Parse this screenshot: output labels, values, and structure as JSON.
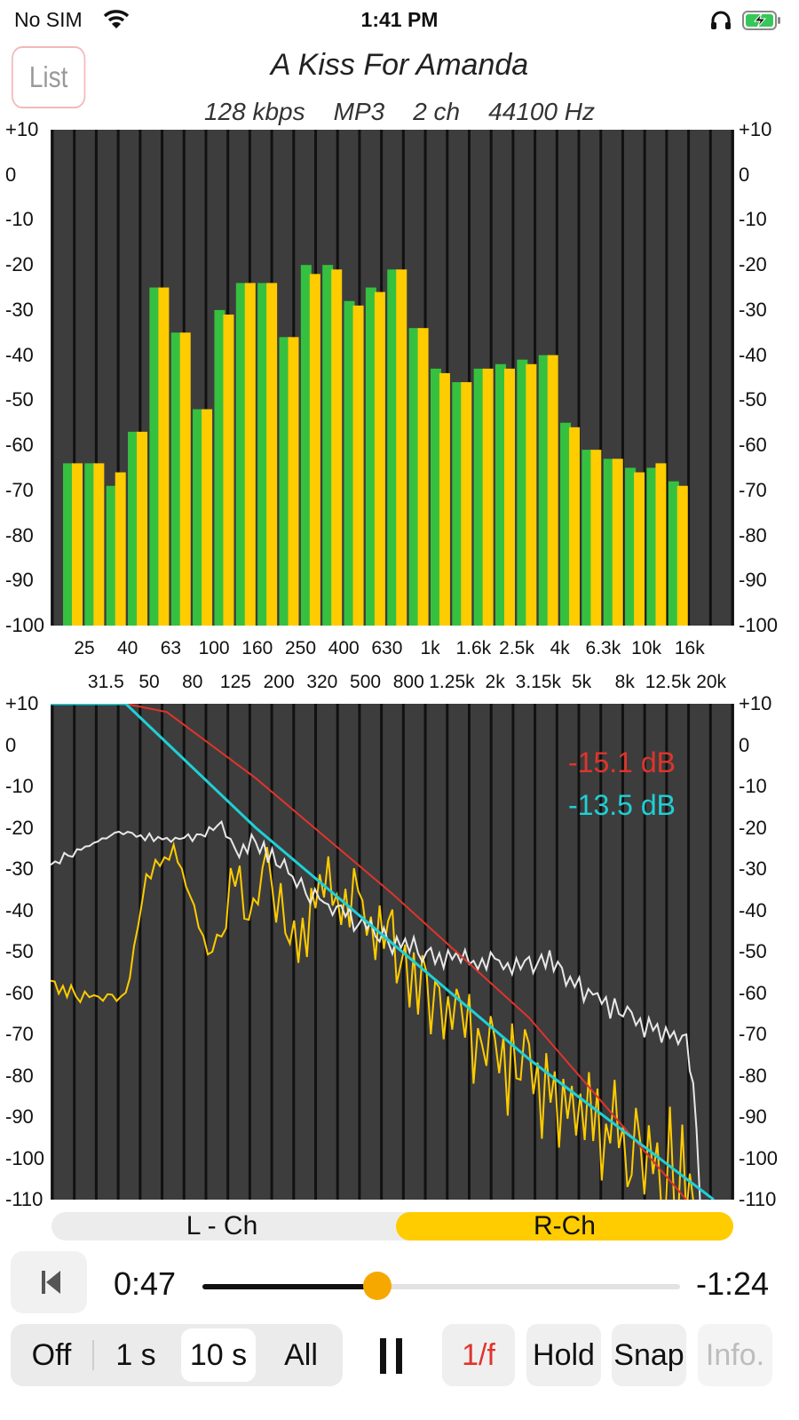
{
  "status_bar": {
    "carrier": "No SIM",
    "time": "1:41 PM",
    "icons": [
      "wifi-icon",
      "headphones-icon",
      "battery-charging-icon"
    ],
    "battery_color": "#35c759"
  },
  "header": {
    "list_button": "List",
    "title": "A Kiss For Amanda",
    "info": {
      "bitrate": "128 kbps",
      "format": "MP3",
      "channels": "2 ch",
      "sample_rate": "44100 Hz"
    }
  },
  "colors": {
    "panel_bg": "#3d3d3d",
    "grid": "#111111",
    "left_ch": "#35c13f",
    "right_ch": "#ffcc00",
    "white_trace": "#e8e8e8",
    "red_slope": "#e0342b",
    "cyan_slope": "#1fd0d6"
  },
  "chart_data": [
    {
      "type": "bar",
      "name": "octave-band-spectrum",
      "ylim": [
        -100,
        10
      ],
      "yticks": [
        "+10",
        "0",
        "-10",
        "-20",
        "-30",
        "-40",
        "-50",
        "-60",
        "-70",
        "-80",
        "-90",
        "-100"
      ],
      "categories": [
        "25",
        "31.5",
        "40",
        "50",
        "63",
        "80",
        "100",
        "125",
        "160",
        "200",
        "250",
        "320",
        "400",
        "500",
        "630",
        "800",
        "1k",
        "1.25k",
        "1.6k",
        "2k",
        "2.5k",
        "3.15k",
        "4k",
        "5k",
        "6.3k",
        "8k",
        "10k",
        "12.5k",
        "16k",
        "20k"
      ],
      "series": [
        {
          "channel": "L",
          "values": [
            -64,
            -64,
            -69,
            -57,
            -25,
            -35,
            -52,
            -30,
            -24,
            -24,
            -36,
            -20,
            -20,
            -28,
            -25,
            -21,
            -34,
            -43,
            -46,
            -43,
            -42,
            -41,
            -40,
            -55,
            -61,
            -63,
            -65,
            -65,
            -68,
            -100
          ]
        },
        {
          "channel": "R",
          "values": [
            -64,
            -64,
            -66,
            -57,
            -25,
            -35,
            -52,
            -31,
            -24,
            -24,
            -36,
            -22,
            -21,
            -29,
            -26,
            -21,
            -34,
            -44,
            -46,
            -43,
            -43,
            -42,
            -40,
            -56,
            -61,
            -63,
            -66,
            -64,
            -69,
            -100
          ]
        }
      ]
    },
    {
      "type": "line",
      "name": "fft-spectrum",
      "ylim": [
        -110,
        10
      ],
      "yticks": [
        "+10",
        "0",
        "-10",
        "-20",
        "-30",
        "-40",
        "-50",
        "-60",
        "-70",
        "-80",
        "-90",
        "-100",
        "-110"
      ],
      "annotations": {
        "red": "-15.1 dB",
        "cyan": "-13.5 dB"
      },
      "series": [
        {
          "label": "white",
          "x": [
            0,
            0.02,
            0.1,
            0.17,
            0.22,
            0.25,
            0.27,
            0.3,
            0.33,
            0.36,
            0.4,
            0.45,
            0.5,
            0.55,
            0.6,
            0.65,
            0.7,
            0.73,
            0.76,
            0.8,
            0.85,
            0.9,
            0.93,
            0.94,
            0.95
          ],
          "y": [
            -29,
            -27,
            -21,
            -23,
            -22,
            -19,
            -27,
            -24,
            -27,
            -33,
            -38,
            -43,
            -48,
            -50,
            -52,
            -53,
            -54,
            -51,
            -58,
            -61,
            -67,
            -70,
            -72,
            -80,
            -110
          ]
        },
        {
          "label": "yellow",
          "x": [
            0,
            0.03,
            0.07,
            0.11,
            0.14,
            0.18,
            0.21,
            0.23,
            0.25,
            0.27,
            0.29,
            0.31,
            0.33,
            0.35,
            0.4,
            0.45,
            0.5,
            0.55,
            0.6,
            0.65,
            0.7,
            0.75,
            0.8,
            0.85,
            0.9,
            0.93,
            0.94
          ],
          "y": [
            -57,
            -60,
            -61,
            -61,
            -32,
            -25,
            -40,
            -51,
            -45,
            -30,
            -42,
            -28,
            -35,
            -48,
            -35,
            -40,
            -50,
            -60,
            -70,
            -75,
            -82,
            -88,
            -92,
            -96,
            -100,
            -104,
            -110
          ]
        },
        {
          "label": "red",
          "x": [
            0,
            0.11,
            0.17,
            0.3,
            0.5,
            0.7,
            0.93
          ],
          "y": [
            10,
            10,
            8,
            -8,
            -36,
            -66,
            -110
          ]
        },
        {
          "label": "cyan",
          "x": [
            0,
            0.11,
            0.3,
            0.5,
            0.7,
            0.97
          ],
          "y": [
            10,
            10,
            -20,
            -48,
            -76,
            -110
          ]
        }
      ]
    }
  ],
  "channel_selector": {
    "left": "L - Ch",
    "right": "R-Ch",
    "selected": "R-Ch"
  },
  "playback": {
    "elapsed": "0:47",
    "remaining": "-1:24",
    "progress": 0.36
  },
  "toolbar": {
    "averaging": [
      "Off",
      "1 s",
      "10 s",
      "All"
    ],
    "averaging_selected": "10 s",
    "one_over_f": "1/f",
    "hold": "Hold",
    "snap": "Snap",
    "info": "Info."
  }
}
